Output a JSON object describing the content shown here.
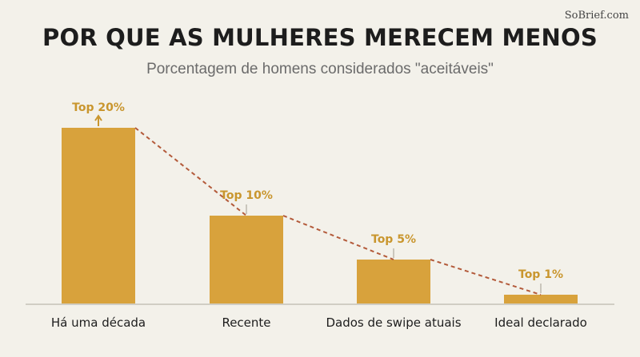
{
  "watermark": "SoBrief.com",
  "colors": {
    "bar": "#d8a23c",
    "label": "#c9962e",
    "trend": "#b35a3a",
    "baseline": "#d0cdc4",
    "background": "#f3f1ea"
  },
  "chart_data": {
    "type": "bar",
    "title": "POR QUE AS MULHERES MERECEM MENOS",
    "subtitle": "Porcentagem de homens considerados \"aceitáveis\"",
    "categories": [
      "Há uma década",
      "Recente",
      "Dados de swipe atuais",
      "Ideal declarado"
    ],
    "values": [
      20,
      10,
      5,
      1
    ],
    "data_labels": [
      "Top 20%",
      "Top 10%",
      "Top 5%",
      "Top 1%"
    ],
    "ylim": [
      0,
      20
    ],
    "grid": false,
    "trend_line": "dashed",
    "xlabel": "",
    "ylabel": ""
  }
}
